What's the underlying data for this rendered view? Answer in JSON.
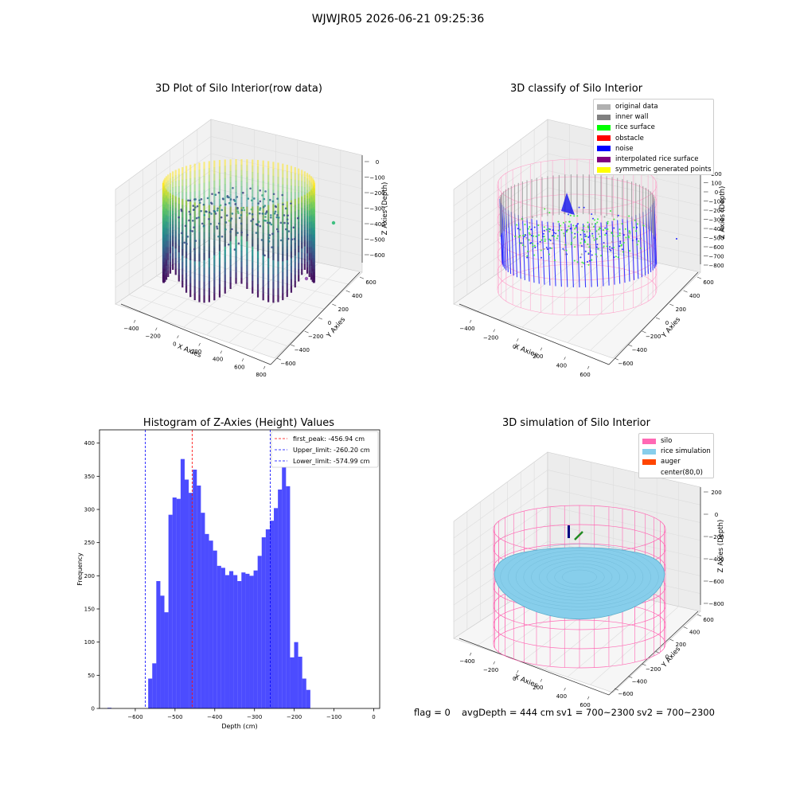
{
  "figure": {
    "suptitle": "WJWJR05 2026-06-21 09:25:36"
  },
  "panels": {
    "raw": {
      "title": "3D Plot of Silo Interior(row data)",
      "xlabel": "X Axies",
      "ylabel": "Y Axies",
      "zlabel": "Z Axies (Depth)",
      "xticks": [
        "−400",
        "−200",
        "0",
        "200",
        "400",
        "600",
        "800"
      ],
      "yticks": [
        "−600",
        "−400",
        "−200",
        "0",
        "200",
        "400",
        "600"
      ],
      "zticks": [
        "0",
        "−100",
        "−200",
        "−300",
        "−400",
        "−500",
        "−600"
      ],
      "colormap": [
        "#440154",
        "#3b528b",
        "#21918c",
        "#5ec962",
        "#fde725"
      ]
    },
    "classify": {
      "title": "3D classify of Silo Interior",
      "xlabel": "X Axies",
      "ylabel": "Y Axies",
      "zlabel": "Z Axies (Depth)",
      "xticks": [
        "−400",
        "−200",
        "0",
        "200",
        "400",
        "600"
      ],
      "yticks": [
        "−600",
        "−400",
        "−200",
        "0",
        "200",
        "400",
        "600"
      ],
      "zticks": [
        "200",
        "100",
        "0",
        "−100",
        "−200",
        "−300",
        "−400",
        "−500",
        "−600",
        "−700",
        "−800"
      ],
      "legend": [
        {
          "label": "original data",
          "color": "#b0b0b0"
        },
        {
          "label": "inner wall",
          "color": "#808080"
        },
        {
          "label": "rice surface",
          "color": "#00ff00"
        },
        {
          "label": "obstacle",
          "color": "#ff0000"
        },
        {
          "label": "noise",
          "color": "#0000ff"
        },
        {
          "label": "interpolated rice surface",
          "color": "#800080"
        },
        {
          "label": "symmetric generated points",
          "color": "#ffff00"
        }
      ]
    },
    "histogram": {
      "title": "Histogram of Z-Axies (Height) Values",
      "xlabel": "Depth (cm)",
      "ylabel": "Frequency",
      "legend": [
        {
          "label": "first_peak: -456.94 cm",
          "color": "#ff0000"
        },
        {
          "label": "Upper_limit: -260.20 cm",
          "color": "#0000ff"
        },
        {
          "label": "Lower_limit: -574.99 cm",
          "color": "#0000ff"
        }
      ]
    },
    "simulation": {
      "title": "3D simulation of Silo Interior",
      "xlabel": "X Axies",
      "ylabel": "Y Axies",
      "zlabel": "Z Axies (Depth)",
      "xticks": [
        "−400",
        "−200",
        "0",
        "200",
        "400",
        "600"
      ],
      "yticks": [
        "−600",
        "−400",
        "−200",
        "0",
        "200",
        "400",
        "600"
      ],
      "zticks": [
        "200",
        "0",
        "−200",
        "−400",
        "−600",
        "−800"
      ],
      "legend": [
        {
          "label": "silo",
          "color": "#ff69b4"
        },
        {
          "label": "rice simulation",
          "color": "#87ceeb"
        },
        {
          "label": "auger",
          "color": "#ff4500"
        },
        {
          "label": "center(80,0)",
          "color": "#ffffff"
        }
      ]
    }
  },
  "footer": {
    "flag": "flag = 0",
    "avg": "avgDepth = 444 cm",
    "sv1": "sv1 = 700~2300",
    "sv2": "sv2 = 700~2300"
  },
  "chart_data": [
    {
      "type": "bar",
      "title": "Histogram of Z-Axies (Height) Values",
      "xlabel": "Depth (cm)",
      "ylabel": "Frequency",
      "xlim": [
        -690,
        15
      ],
      "ylim": [
        0,
        420
      ],
      "xticks": [
        -600,
        -500,
        -400,
        -300,
        -200,
        -100,
        0
      ],
      "yticks": [
        0,
        50,
        100,
        150,
        200,
        250,
        300,
        350,
        400
      ],
      "bin_width": 10.2,
      "bin_start": -567.5,
      "values": [
        45,
        68,
        192,
        170,
        145,
        292,
        318,
        316,
        376,
        345,
        325,
        360,
        336,
        295,
        263,
        253,
        238,
        215,
        212,
        201,
        207,
        201,
        192,
        205,
        203,
        200,
        208,
        230,
        258,
        270,
        283,
        302,
        330,
        392,
        335,
        77,
        100,
        78,
        45,
        28
      ],
      "outliers": [
        {
          "x": -665,
          "value": 1
        }
      ],
      "vlines": [
        {
          "name": "first_peak",
          "x": -456.94,
          "color": "#ff0000"
        },
        {
          "name": "Upper_limit",
          "x": -260.2,
          "color": "#0000ff"
        },
        {
          "name": "Lower_limit",
          "x": -574.99,
          "color": "#0000ff"
        }
      ],
      "bar_color": "#0000ff",
      "bar_alpha": 0.7,
      "legend_position": "top-right",
      "grid": false
    }
  ]
}
